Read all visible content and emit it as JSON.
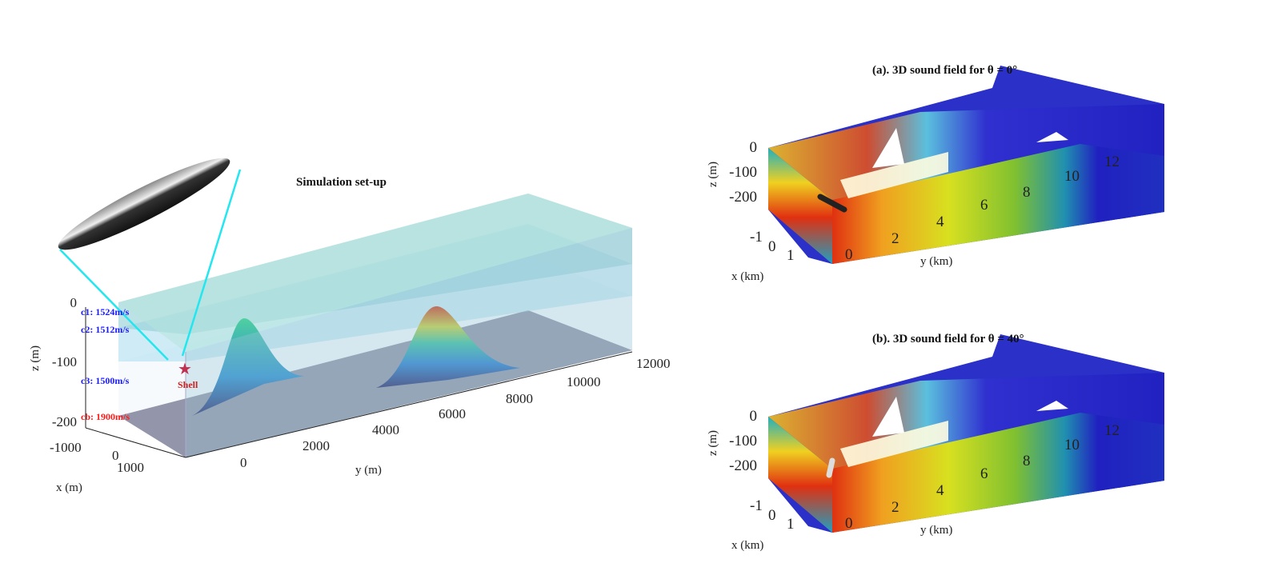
{
  "setup": {
    "title": "Simulation set-up",
    "layers": [
      {
        "label": "c1: 1524m/s",
        "color": "#1a1aff"
      },
      {
        "label": "c2: 1512m/s",
        "color": "#1a1aff"
      },
      {
        "label": "c3: 1500m/s",
        "color": "#1a1aff"
      },
      {
        "label": "cb: 1900m/s",
        "color": "#ff1a1a"
      }
    ],
    "source_label": "Shell",
    "z_axis": {
      "label": "z (m)",
      "ticks": [
        "0",
        "-100",
        "-200"
      ]
    },
    "x_axis": {
      "label": "x (m)",
      "ticks": [
        "-1000",
        "0",
        "1000"
      ]
    },
    "y_axis": {
      "label": "y (m)",
      "ticks": [
        "0",
        "2000",
        "4000",
        "6000",
        "8000",
        "10000",
        "12000"
      ]
    }
  },
  "panels": [
    {
      "title": "(a). 3D sound field for θ = 0°",
      "z_axis": {
        "label": "z (m)",
        "ticks": [
          "0",
          "-100",
          "-200"
        ]
      },
      "x_axis": {
        "label": "x (km)",
        "ticks": [
          "-1",
          "0",
          "1"
        ]
      },
      "y_axis": {
        "label": "y (km)",
        "ticks": [
          "0",
          "2",
          "4",
          "6",
          "8",
          "10",
          "12"
        ]
      }
    },
    {
      "title": "(b). 3D sound field for θ = 40°",
      "z_axis": {
        "label": "z (m)",
        "ticks": [
          "0",
          "-100",
          "-200"
        ]
      },
      "x_axis": {
        "label": "x (km)",
        "ticks": [
          "-1",
          "0",
          "1"
        ]
      },
      "y_axis": {
        "label": "y (km)",
        "ticks": [
          "0",
          "2",
          "4",
          "6",
          "8",
          "10",
          "12"
        ]
      }
    }
  ]
}
